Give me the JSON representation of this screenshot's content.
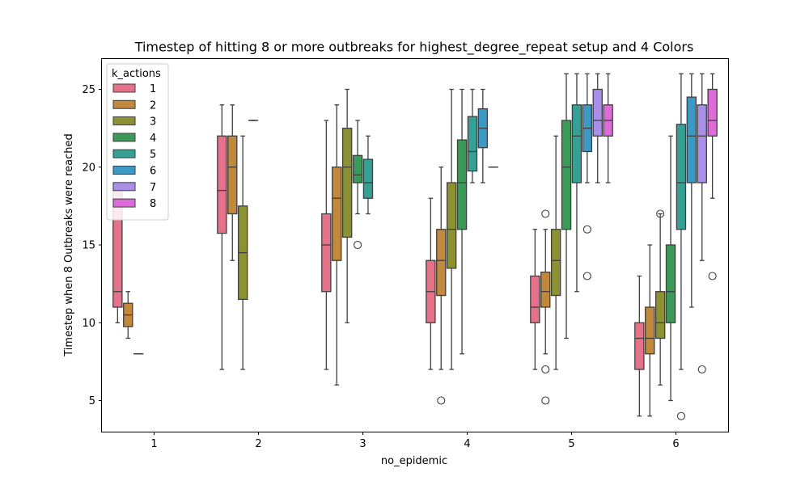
{
  "chart_data": {
    "type": "boxplot",
    "title": "Timestep of hitting 8 or more outbreaks for highest_degree_repeat setup and 4 Colors",
    "xlabel": "no_epidemic",
    "ylabel": "Timestep when 8 Outbreaks were reached",
    "categories": [
      "1",
      "2",
      "3",
      "4",
      "5",
      "6"
    ],
    "ylim": [
      3,
      27
    ],
    "yticks": [
      5,
      10,
      15,
      20,
      25
    ],
    "grid": false,
    "legend": {
      "title": "k_actions",
      "placement": "top-left",
      "entries": [
        "1",
        "2",
        "3",
        "4",
        "5",
        "6",
        "7",
        "8"
      ]
    },
    "colors": [
      "#e6728a",
      "#c1893b",
      "#8c9232",
      "#3b9a58",
      "#37a095",
      "#3d98c4",
      "#a98fea",
      "#dd6bd9"
    ],
    "series": [
      {
        "name": "1",
        "boxes": [
          {
            "category": "1",
            "whislo": 10,
            "q1": 11,
            "med": 12,
            "q3": 19,
            "whishi": 19,
            "fliers": []
          },
          {
            "category": "2",
            "whislo": 7,
            "q1": 15.75,
            "med": 18.5,
            "q3": 22,
            "whishi": 24,
            "fliers": []
          },
          {
            "category": "3",
            "whislo": 7,
            "q1": 12,
            "med": 15,
            "q3": 17,
            "whishi": 23,
            "fliers": []
          },
          {
            "category": "4",
            "whislo": 7,
            "q1": 10,
            "med": 12,
            "q3": 14,
            "whishi": 18,
            "fliers": []
          },
          {
            "category": "5",
            "whislo": 7,
            "q1": 10,
            "med": 11,
            "q3": 13,
            "whishi": 16,
            "fliers": []
          },
          {
            "category": "6",
            "whislo": 4,
            "q1": 7,
            "med": 9,
            "q3": 10,
            "whishi": 13,
            "fliers": []
          }
        ]
      },
      {
        "name": "2",
        "boxes": [
          {
            "category": "1",
            "whislo": 9,
            "q1": 9.75,
            "med": 10.5,
            "q3": 11.25,
            "whishi": 12,
            "fliers": []
          },
          {
            "category": "2",
            "whislo": 14,
            "q1": 17,
            "med": 20,
            "q3": 22,
            "whishi": 24,
            "fliers": []
          },
          {
            "category": "3",
            "whislo": 6,
            "q1": 14,
            "med": 18,
            "q3": 20,
            "whishi": 24,
            "fliers": []
          },
          {
            "category": "4",
            "whislo": 7,
            "q1": 11.75,
            "med": 14,
            "q3": 16,
            "whishi": 20,
            "fliers": [
              5
            ]
          },
          {
            "category": "5",
            "whislo": 8,
            "q1": 11,
            "med": 12,
            "q3": 13.25,
            "whishi": 16,
            "fliers": [
              17,
              7,
              5
            ]
          },
          {
            "category": "6",
            "whislo": 4,
            "q1": 8,
            "med": 9,
            "q3": 11,
            "whishi": 15,
            "fliers": []
          }
        ]
      },
      {
        "name": "3",
        "boxes": [
          {
            "category": "1",
            "whislo": 8,
            "q1": 8,
            "med": 8,
            "q3": 8,
            "whishi": 8,
            "fliers": []
          },
          {
            "category": "2",
            "whislo": 7,
            "q1": 11.5,
            "med": 14.5,
            "q3": 17.5,
            "whishi": 22,
            "fliers": []
          },
          {
            "category": "3",
            "whislo": 10,
            "q1": 15.5,
            "med": 20,
            "q3": 22.5,
            "whishi": 25,
            "fliers": []
          },
          {
            "category": "4",
            "whislo": 7,
            "q1": 13.5,
            "med": 16,
            "q3": 19,
            "whishi": 25,
            "fliers": []
          },
          {
            "category": "5",
            "whislo": 7,
            "q1": 11.75,
            "med": 14,
            "q3": 16,
            "whishi": 22,
            "fliers": []
          },
          {
            "category": "6",
            "whislo": 6,
            "q1": 9,
            "med": 10,
            "q3": 12,
            "whishi": 17,
            "fliers": [
              17
            ]
          }
        ]
      },
      {
        "name": "4",
        "boxes": [
          {
            "category": "2",
            "whislo": 23,
            "q1": 23,
            "med": 23,
            "q3": 23,
            "whishi": 23,
            "fliers": []
          },
          {
            "category": "3",
            "whislo": 17,
            "q1": 19,
            "med": 19.5,
            "q3": 20.75,
            "whishi": 23,
            "fliers": [
              15
            ]
          },
          {
            "category": "4",
            "whislo": 8,
            "q1": 16,
            "med": 19,
            "q3": 21.75,
            "whishi": 25,
            "fliers": []
          },
          {
            "category": "5",
            "whislo": 9,
            "q1": 16,
            "med": 20,
            "q3": 23,
            "whishi": 26,
            "fliers": []
          },
          {
            "category": "6",
            "whislo": 5,
            "q1": 10,
            "med": 12,
            "q3": 15,
            "whishi": 22,
            "fliers": []
          }
        ]
      },
      {
        "name": "5",
        "boxes": [
          {
            "category": "3",
            "whislo": 17,
            "q1": 18,
            "med": 19,
            "q3": 20.5,
            "whishi": 22,
            "fliers": []
          },
          {
            "category": "4",
            "whislo": 19,
            "q1": 19.75,
            "med": 21,
            "q3": 23.25,
            "whishi": 25,
            "fliers": []
          },
          {
            "category": "5",
            "whislo": 12,
            "q1": 19,
            "med": 22,
            "q3": 24,
            "whishi": 26,
            "fliers": []
          },
          {
            "category": "6",
            "whislo": 7,
            "q1": 16,
            "med": 19,
            "q3": 22.75,
            "whishi": 26,
            "fliers": [
              4
            ]
          }
        ]
      },
      {
        "name": "6",
        "boxes": [
          {
            "category": "4",
            "whislo": 19,
            "q1": 21.25,
            "med": 22.5,
            "q3": 23.75,
            "whishi": 25,
            "fliers": []
          },
          {
            "category": "5",
            "whislo": 19,
            "q1": 21,
            "med": 22.5,
            "q3": 24,
            "whishi": 26,
            "fliers": [
              16,
              13
            ]
          },
          {
            "category": "6",
            "whislo": 11,
            "q1": 19,
            "med": 22,
            "q3": 24.5,
            "whishi": 26,
            "fliers": []
          }
        ]
      },
      {
        "name": "7",
        "boxes": [
          {
            "category": "4",
            "whislo": 20,
            "q1": 20,
            "med": 20,
            "q3": 20,
            "whishi": 20,
            "fliers": []
          },
          {
            "category": "5",
            "whislo": 19,
            "q1": 22,
            "med": 23,
            "q3": 25,
            "whishi": 26,
            "fliers": []
          },
          {
            "category": "6",
            "whislo": 14,
            "q1": 19,
            "med": 22,
            "q3": 24,
            "whishi": 26,
            "fliers": [
              7
            ]
          }
        ]
      },
      {
        "name": "8",
        "boxes": [
          {
            "category": "5",
            "whislo": 19,
            "q1": 22,
            "med": 23,
            "q3": 24,
            "whishi": 26,
            "fliers": []
          },
          {
            "category": "6",
            "whislo": 18,
            "q1": 22,
            "med": 23,
            "q3": 25,
            "whishi": 26,
            "fliers": [
              13
            ]
          }
        ]
      }
    ]
  }
}
